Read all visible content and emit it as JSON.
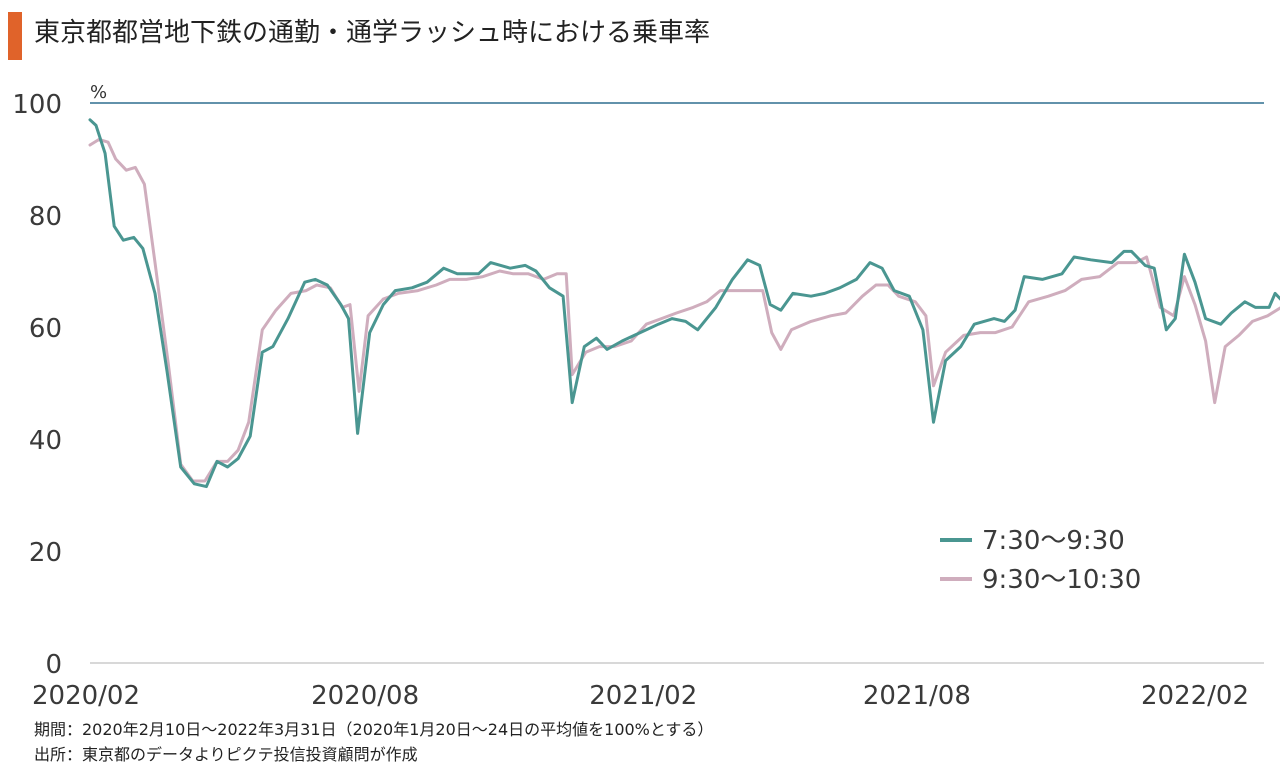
{
  "title": "東京都都営地下鉄の通勤・通学ラッシュ時における乗車率",
  "accent_color": "#e0632a",
  "footnotes": {
    "period": "期間：2020年2月10日～2022年3月31日（2020年1月20日～24日の平均値を100%とする）",
    "source": "出所：東京都のデータよりピクテ投信投資顧問が作成"
  },
  "chart_data": {
    "type": "line",
    "title": "東京都都営地下鉄の通勤・通学ラッシュ時における乗車率",
    "xlabel": "",
    "ylabel": "%",
    "ylim": [
      0,
      100
    ],
    "xlim": [
      "2020-02-10",
      "2022-03-31"
    ],
    "y_ticks": [
      0,
      20,
      40,
      60,
      80,
      100
    ],
    "y_tick_labels": [
      "0",
      "20",
      "40",
      "60",
      "80",
      "100"
    ],
    "x_ticks": [
      "2020-02-10",
      "2020-08-10",
      "2021-02-10",
      "2021-08-10",
      "2022-02-10"
    ],
    "x_tick_labels": [
      "2020/02",
      "2020/08",
      "2021/02",
      "2021/08",
      "2022/02"
    ],
    "reference_line": 100,
    "grid": false,
    "legend_position": "right",
    "series": [
      {
        "name": "7:30～9:30",
        "color": "#4a9691",
        "points": [
          [
            "2020-02-10",
            97
          ],
          [
            "2020-02-14",
            96
          ],
          [
            "2020-02-20",
            91
          ],
          [
            "2020-02-26",
            78
          ],
          [
            "2020-03-03",
            75.5
          ],
          [
            "2020-03-10",
            76
          ],
          [
            "2020-03-16",
            74
          ],
          [
            "2020-03-24",
            66
          ],
          [
            "2020-04-01",
            52
          ],
          [
            "2020-04-10",
            35
          ],
          [
            "2020-04-19",
            32
          ],
          [
            "2020-04-27",
            31.5
          ],
          [
            "2020-05-04",
            36
          ],
          [
            "2020-05-11",
            35
          ],
          [
            "2020-05-18",
            36.5
          ],
          [
            "2020-05-26",
            40.5
          ],
          [
            "2020-06-03",
            55.5
          ],
          [
            "2020-06-10",
            56.5
          ],
          [
            "2020-06-20",
            61.5
          ],
          [
            "2020-07-01",
            68
          ],
          [
            "2020-07-08",
            68.5
          ],
          [
            "2020-07-16",
            67.5
          ],
          [
            "2020-07-25",
            64
          ],
          [
            "2020-07-30",
            61.5
          ],
          [
            "2020-08-05",
            41
          ],
          [
            "2020-08-13",
            59
          ],
          [
            "2020-08-22",
            64
          ],
          [
            "2020-08-30",
            66.5
          ],
          [
            "2020-09-10",
            67
          ],
          [
            "2020-09-20",
            68
          ],
          [
            "2020-10-01",
            70.5
          ],
          [
            "2020-10-10",
            69.5
          ],
          [
            "2020-10-24",
            69.5
          ],
          [
            "2020-11-01",
            71.5
          ],
          [
            "2020-11-14",
            70.5
          ],
          [
            "2020-11-24",
            71
          ],
          [
            "2020-12-01",
            70
          ],
          [
            "2020-12-10",
            67
          ],
          [
            "2020-12-19",
            65.5
          ],
          [
            "2020-12-25",
            46.5
          ],
          [
            "2021-01-02",
            56.5
          ],
          [
            "2021-01-10",
            58
          ],
          [
            "2021-01-17",
            56
          ],
          [
            "2021-01-27",
            57.5
          ],
          [
            "2021-02-08",
            59
          ],
          [
            "2021-02-20",
            60.5
          ],
          [
            "2021-03-01",
            61.5
          ],
          [
            "2021-03-10",
            61
          ],
          [
            "2021-03-18",
            59.5
          ],
          [
            "2021-03-30",
            63.5
          ],
          [
            "2021-04-10",
            68.5
          ],
          [
            "2021-04-20",
            72
          ],
          [
            "2021-04-28",
            71
          ],
          [
            "2021-05-05",
            64
          ],
          [
            "2021-05-12",
            63
          ],
          [
            "2021-05-20",
            66
          ],
          [
            "2021-06-01",
            65.5
          ],
          [
            "2021-06-10",
            66
          ],
          [
            "2021-06-20",
            67
          ],
          [
            "2021-07-01",
            68.5
          ],
          [
            "2021-07-10",
            71.5
          ],
          [
            "2021-07-18",
            70.5
          ],
          [
            "2021-07-26",
            66.5
          ],
          [
            "2021-08-05",
            65.5
          ],
          [
            "2021-08-14",
            59.5
          ],
          [
            "2021-08-21",
            43
          ],
          [
            "2021-08-29",
            54
          ],
          [
            "2021-09-08",
            56.5
          ],
          [
            "2021-09-17",
            60.5
          ],
          [
            "2021-09-30",
            61.5
          ],
          [
            "2021-10-07",
            61
          ],
          [
            "2021-10-14",
            63
          ],
          [
            "2021-10-20",
            69
          ],
          [
            "2021-11-01",
            68.5
          ],
          [
            "2021-11-14",
            69.5
          ],
          [
            "2021-11-22",
            72.5
          ],
          [
            "2021-12-03",
            72
          ],
          [
            "2021-12-17",
            71.5
          ],
          [
            "2021-12-25",
            73.5
          ],
          [
            "2021-12-30",
            73.5
          ],
          [
            "2022-01-08",
            71
          ],
          [
            "2022-01-14",
            70.5
          ],
          [
            "2022-01-22",
            59.5
          ],
          [
            "2022-01-28",
            61.5
          ],
          [
            "2022-02-03",
            73
          ],
          [
            "2022-02-10",
            68
          ],
          [
            "2022-02-17",
            61.5
          ],
          [
            "2022-02-27",
            60.5
          ],
          [
            "2022-03-06",
            62.5
          ],
          [
            "2022-03-15",
            64.5
          ],
          [
            "2022-03-22",
            63.5
          ],
          [
            "2022-03-31",
            63.5
          ],
          [
            "2022-04-04",
            66
          ],
          [
            "2022-04-11",
            64
          ]
        ]
      },
      {
        "name": "9:30～10:30",
        "color": "#cfadbd",
        "points": [
          [
            "2020-02-10",
            92.5
          ],
          [
            "2020-02-16",
            93.5
          ],
          [
            "2020-02-22",
            93
          ],
          [
            "2020-02-27",
            90
          ],
          [
            "2020-03-05",
            88
          ],
          [
            "2020-03-11",
            88.5
          ],
          [
            "2020-03-17",
            85.5
          ],
          [
            "2020-03-24",
            71.5
          ],
          [
            "2020-04-02",
            53
          ],
          [
            "2020-04-10",
            35.5
          ],
          [
            "2020-04-18",
            32.5
          ],
          [
            "2020-04-26",
            32.5
          ],
          [
            "2020-05-04",
            36
          ],
          [
            "2020-05-11",
            36
          ],
          [
            "2020-05-18",
            38
          ],
          [
            "2020-05-25",
            43
          ],
          [
            "2020-06-03",
            59.5
          ],
          [
            "2020-06-12",
            63
          ],
          [
            "2020-06-22",
            66
          ],
          [
            "2020-07-02",
            66.5
          ],
          [
            "2020-07-09",
            67.5
          ],
          [
            "2020-07-18",
            67
          ],
          [
            "2020-07-26",
            63.5
          ],
          [
            "2020-07-31",
            64
          ],
          [
            "2020-08-06",
            48.5
          ],
          [
            "2020-08-12",
            62
          ],
          [
            "2020-08-22",
            65
          ],
          [
            "2020-09-01",
            66
          ],
          [
            "2020-09-14",
            66.5
          ],
          [
            "2020-09-26",
            67.5
          ],
          [
            "2020-10-05",
            68.5
          ],
          [
            "2020-10-16",
            68.5
          ],
          [
            "2020-10-27",
            69
          ],
          [
            "2020-11-07",
            70
          ],
          [
            "2020-11-16",
            69.5
          ],
          [
            "2020-11-26",
            69.5
          ],
          [
            "2020-12-06",
            68.5
          ],
          [
            "2020-12-15",
            69.5
          ],
          [
            "2020-12-21",
            69.5
          ],
          [
            "2020-12-25",
            51.5
          ],
          [
            "2021-01-03",
            55.5
          ],
          [
            "2021-01-12",
            56.5
          ],
          [
            "2021-01-22",
            56.5
          ],
          [
            "2021-02-02",
            57.5
          ],
          [
            "2021-02-12",
            60.5
          ],
          [
            "2021-02-22",
            61.5
          ],
          [
            "2021-03-04",
            62.5
          ],
          [
            "2021-03-15",
            63.5
          ],
          [
            "2021-03-24",
            64.5
          ],
          [
            "2021-04-02",
            66.5
          ],
          [
            "2021-04-20",
            66.5
          ],
          [
            "2021-04-30",
            66.5
          ],
          [
            "2021-05-06",
            59
          ],
          [
            "2021-05-12",
            56
          ],
          [
            "2021-05-19",
            59.5
          ],
          [
            "2021-06-01",
            61
          ],
          [
            "2021-06-14",
            62
          ],
          [
            "2021-06-24",
            62.5
          ],
          [
            "2021-07-05",
            65.5
          ],
          [
            "2021-07-14",
            67.5
          ],
          [
            "2021-07-22",
            67.5
          ],
          [
            "2021-07-29",
            65.5
          ],
          [
            "2021-08-09",
            64.5
          ],
          [
            "2021-08-16",
            62
          ],
          [
            "2021-08-21",
            49.5
          ],
          [
            "2021-08-29",
            55.5
          ],
          [
            "2021-09-10",
            58.5
          ],
          [
            "2021-09-21",
            59
          ],
          [
            "2021-10-01",
            59
          ],
          [
            "2021-10-12",
            60
          ],
          [
            "2021-10-23",
            64.5
          ],
          [
            "2021-11-05",
            65.5
          ],
          [
            "2021-11-16",
            66.5
          ],
          [
            "2021-11-27",
            68.5
          ],
          [
            "2021-12-09",
            69
          ],
          [
            "2021-12-21",
            71.5
          ],
          [
            "2022-01-02",
            71.5
          ],
          [
            "2022-01-09",
            72.5
          ],
          [
            "2022-01-18",
            63.5
          ],
          [
            "2022-01-27",
            62
          ],
          [
            "2022-02-03",
            69
          ],
          [
            "2022-02-10",
            64
          ],
          [
            "2022-02-17",
            57.5
          ],
          [
            "2022-02-23",
            46.5
          ],
          [
            "2022-03-02",
            56.5
          ],
          [
            "2022-03-11",
            58.5
          ],
          [
            "2022-03-20",
            61
          ],
          [
            "2022-03-30",
            62
          ],
          [
            "2022-04-08",
            63.5
          ],
          [
            "2022-04-14",
            67
          ],
          [
            "2022-04-19",
            69.5
          ]
        ]
      }
    ]
  }
}
